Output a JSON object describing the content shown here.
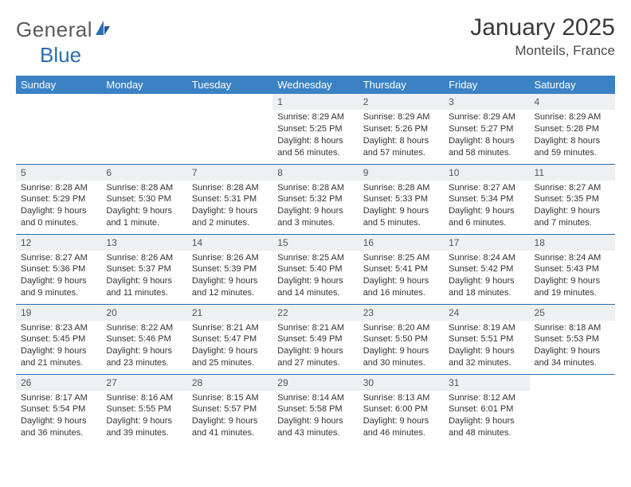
{
  "brand": {
    "word1": "General",
    "word2": "Blue",
    "text_color": "#5a5a5a",
    "accent_color": "#2b6fb3"
  },
  "title": "January 2025",
  "location": "Monteils, France",
  "colors": {
    "header_bg": "#3b82c4",
    "header_text": "#ffffff",
    "daynum_bg": "#eef0f2",
    "rule": "#2b6fb3",
    "body_text": "#333333"
  },
  "days_of_week": [
    "Sunday",
    "Monday",
    "Tuesday",
    "Wednesday",
    "Thursday",
    "Friday",
    "Saturday"
  ],
  "weeks": [
    [
      {
        "n": "",
        "sr": "",
        "ss": "",
        "dl": ""
      },
      {
        "n": "",
        "sr": "",
        "ss": "",
        "dl": ""
      },
      {
        "n": "",
        "sr": "",
        "ss": "",
        "dl": ""
      },
      {
        "n": "1",
        "sr": "Sunrise: 8:29 AM",
        "ss": "Sunset: 5:25 PM",
        "dl": "Daylight: 8 hours and 56 minutes."
      },
      {
        "n": "2",
        "sr": "Sunrise: 8:29 AM",
        "ss": "Sunset: 5:26 PM",
        "dl": "Daylight: 8 hours and 57 minutes."
      },
      {
        "n": "3",
        "sr": "Sunrise: 8:29 AM",
        "ss": "Sunset: 5:27 PM",
        "dl": "Daylight: 8 hours and 58 minutes."
      },
      {
        "n": "4",
        "sr": "Sunrise: 8:29 AM",
        "ss": "Sunset: 5:28 PM",
        "dl": "Daylight: 8 hours and 59 minutes."
      }
    ],
    [
      {
        "n": "5",
        "sr": "Sunrise: 8:28 AM",
        "ss": "Sunset: 5:29 PM",
        "dl": "Daylight: 9 hours and 0 minutes."
      },
      {
        "n": "6",
        "sr": "Sunrise: 8:28 AM",
        "ss": "Sunset: 5:30 PM",
        "dl": "Daylight: 9 hours and 1 minute."
      },
      {
        "n": "7",
        "sr": "Sunrise: 8:28 AM",
        "ss": "Sunset: 5:31 PM",
        "dl": "Daylight: 9 hours and 2 minutes."
      },
      {
        "n": "8",
        "sr": "Sunrise: 8:28 AM",
        "ss": "Sunset: 5:32 PM",
        "dl": "Daylight: 9 hours and 3 minutes."
      },
      {
        "n": "9",
        "sr": "Sunrise: 8:28 AM",
        "ss": "Sunset: 5:33 PM",
        "dl": "Daylight: 9 hours and 5 minutes."
      },
      {
        "n": "10",
        "sr": "Sunrise: 8:27 AM",
        "ss": "Sunset: 5:34 PM",
        "dl": "Daylight: 9 hours and 6 minutes."
      },
      {
        "n": "11",
        "sr": "Sunrise: 8:27 AM",
        "ss": "Sunset: 5:35 PM",
        "dl": "Daylight: 9 hours and 7 minutes."
      }
    ],
    [
      {
        "n": "12",
        "sr": "Sunrise: 8:27 AM",
        "ss": "Sunset: 5:36 PM",
        "dl": "Daylight: 9 hours and 9 minutes."
      },
      {
        "n": "13",
        "sr": "Sunrise: 8:26 AM",
        "ss": "Sunset: 5:37 PM",
        "dl": "Daylight: 9 hours and 11 minutes."
      },
      {
        "n": "14",
        "sr": "Sunrise: 8:26 AM",
        "ss": "Sunset: 5:39 PM",
        "dl": "Daylight: 9 hours and 12 minutes."
      },
      {
        "n": "15",
        "sr": "Sunrise: 8:25 AM",
        "ss": "Sunset: 5:40 PM",
        "dl": "Daylight: 9 hours and 14 minutes."
      },
      {
        "n": "16",
        "sr": "Sunrise: 8:25 AM",
        "ss": "Sunset: 5:41 PM",
        "dl": "Daylight: 9 hours and 16 minutes."
      },
      {
        "n": "17",
        "sr": "Sunrise: 8:24 AM",
        "ss": "Sunset: 5:42 PM",
        "dl": "Daylight: 9 hours and 18 minutes."
      },
      {
        "n": "18",
        "sr": "Sunrise: 8:24 AM",
        "ss": "Sunset: 5:43 PM",
        "dl": "Daylight: 9 hours and 19 minutes."
      }
    ],
    [
      {
        "n": "19",
        "sr": "Sunrise: 8:23 AM",
        "ss": "Sunset: 5:45 PM",
        "dl": "Daylight: 9 hours and 21 minutes."
      },
      {
        "n": "20",
        "sr": "Sunrise: 8:22 AM",
        "ss": "Sunset: 5:46 PM",
        "dl": "Daylight: 9 hours and 23 minutes."
      },
      {
        "n": "21",
        "sr": "Sunrise: 8:21 AM",
        "ss": "Sunset: 5:47 PM",
        "dl": "Daylight: 9 hours and 25 minutes."
      },
      {
        "n": "22",
        "sr": "Sunrise: 8:21 AM",
        "ss": "Sunset: 5:49 PM",
        "dl": "Daylight: 9 hours and 27 minutes."
      },
      {
        "n": "23",
        "sr": "Sunrise: 8:20 AM",
        "ss": "Sunset: 5:50 PM",
        "dl": "Daylight: 9 hours and 30 minutes."
      },
      {
        "n": "24",
        "sr": "Sunrise: 8:19 AM",
        "ss": "Sunset: 5:51 PM",
        "dl": "Daylight: 9 hours and 32 minutes."
      },
      {
        "n": "25",
        "sr": "Sunrise: 8:18 AM",
        "ss": "Sunset: 5:53 PM",
        "dl": "Daylight: 9 hours and 34 minutes."
      }
    ],
    [
      {
        "n": "26",
        "sr": "Sunrise: 8:17 AM",
        "ss": "Sunset: 5:54 PM",
        "dl": "Daylight: 9 hours and 36 minutes."
      },
      {
        "n": "27",
        "sr": "Sunrise: 8:16 AM",
        "ss": "Sunset: 5:55 PM",
        "dl": "Daylight: 9 hours and 39 minutes."
      },
      {
        "n": "28",
        "sr": "Sunrise: 8:15 AM",
        "ss": "Sunset: 5:57 PM",
        "dl": "Daylight: 9 hours and 41 minutes."
      },
      {
        "n": "29",
        "sr": "Sunrise: 8:14 AM",
        "ss": "Sunset: 5:58 PM",
        "dl": "Daylight: 9 hours and 43 minutes."
      },
      {
        "n": "30",
        "sr": "Sunrise: 8:13 AM",
        "ss": "Sunset: 6:00 PM",
        "dl": "Daylight: 9 hours and 46 minutes."
      },
      {
        "n": "31",
        "sr": "Sunrise: 8:12 AM",
        "ss": "Sunset: 6:01 PM",
        "dl": "Daylight: 9 hours and 48 minutes."
      },
      {
        "n": "",
        "sr": "",
        "ss": "",
        "dl": ""
      }
    ]
  ]
}
